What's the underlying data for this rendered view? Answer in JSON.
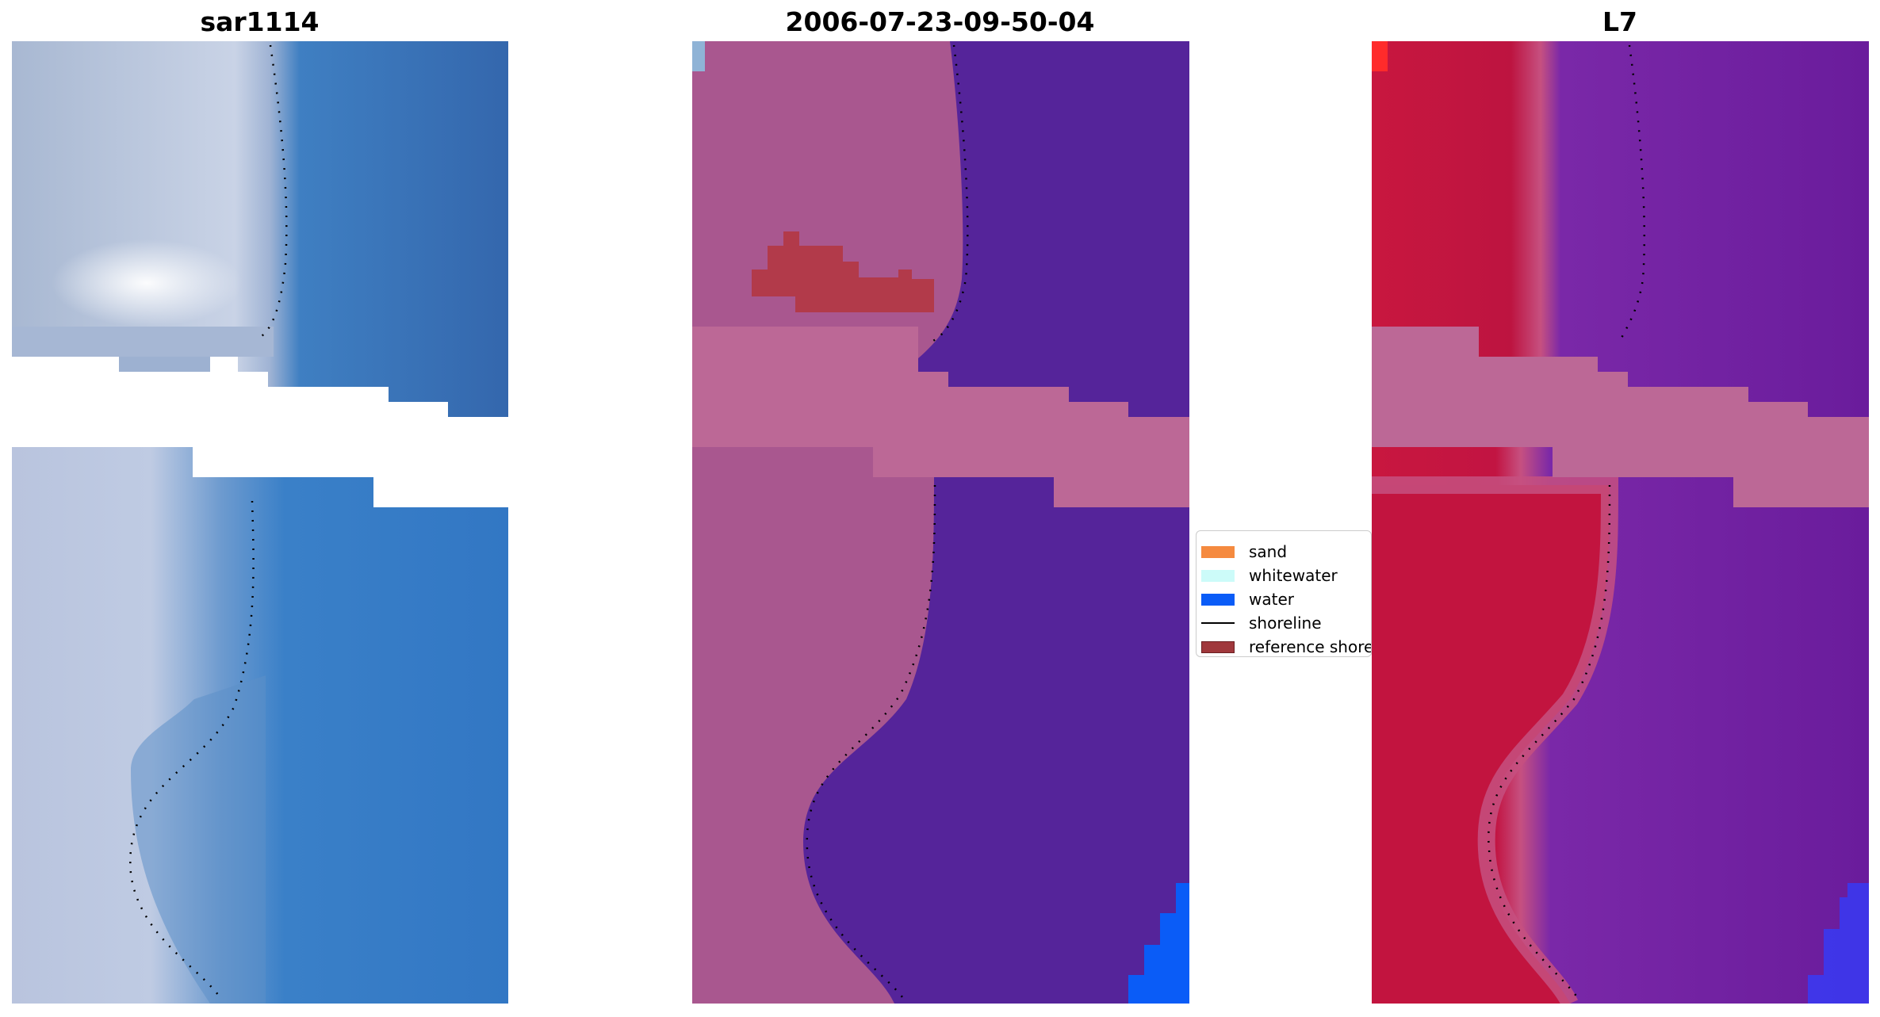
{
  "panels": [
    {
      "title": "sar1114",
      "kind": "rgb"
    },
    {
      "title": "2006-07-23-09-50-04",
      "kind": "classification"
    },
    {
      "title": "L7",
      "kind": "index"
    }
  ],
  "legend": {
    "items": [
      {
        "label": "sand",
        "type": "patch",
        "color": "#f58a3f"
      },
      {
        "label": "whitewater",
        "type": "patch",
        "color": "#ccfbf9"
      },
      {
        "label": "water",
        "type": "patch",
        "color": "#0a5cf7"
      },
      {
        "label": "shoreline",
        "type": "line",
        "color": "#000000"
      },
      {
        "label": "reference shore",
        "type": "patch",
        "color": "#a0383c"
      }
    ]
  },
  "colors": {
    "rgb_land": "#b8c6dc",
    "rgb_foam": "#eef0f8",
    "rgb_water": "#3b7ec4",
    "class_land": "#a9578f",
    "class_water": "#55249a",
    "class_nodata_band": "#bc6896",
    "class_reference": "#b23a4a",
    "class_water_blue": "#0a5cf7",
    "l7_land": "#bd1440",
    "l7_water": "#7020a0",
    "l7_band": "#bc6896",
    "l7_corner": "#ff2020"
  }
}
